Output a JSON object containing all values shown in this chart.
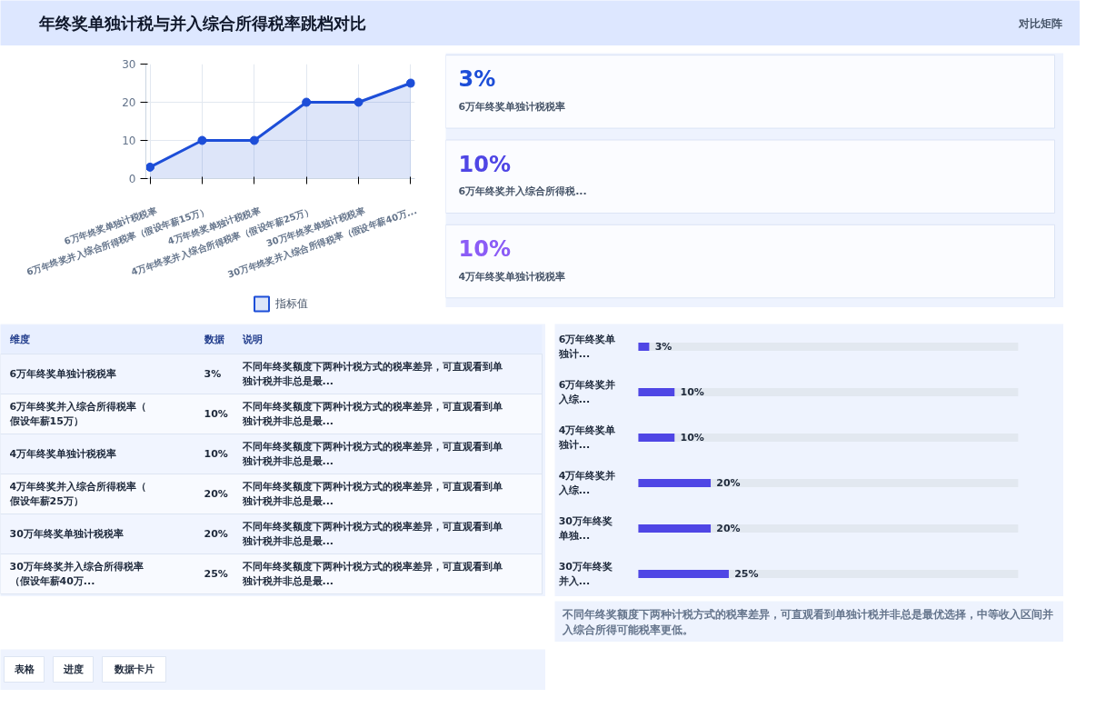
{
  "chart_data": [
    {
      "type": "other",
      "title": "年终奖单独计税与并入综合所得税率跳档对比",
      "subtitle": "对比矩阵"
    },
    {
      "type": "area",
      "categories": [
        "6万年终奖单独计税税率",
        "6万年终奖并入综合所得税率（假设年薪15万）",
        "4万年终奖单独计税税率",
        "4万年终奖并入综合所得税率（假设年薪25万）",
        "30万年终奖单独计税税率",
        "30万年终奖并入综合所得税率（假设年薪40万..."
      ],
      "series": [
        {
          "name": "指标值",
          "color": "#1d4ed8",
          "values": [
            3,
            10,
            10,
            20,
            20,
            25
          ]
        }
      ],
      "ylim": [
        0,
        30
      ],
      "yticks": [
        0,
        10,
        20,
        30
      ],
      "grid": true,
      "legend": "bottom",
      "marker": "circle"
    },
    {
      "type": "other",
      "annotations": [
        "3%",
        "6万年终奖单独计税税率",
        "10%",
        "6万年终奖并入综合所得税...",
        "10%",
        "4万年终奖单独计税税率"
      ]
    },
    {
      "type": "other",
      "annotations": [
        "维度",
        "数据",
        "说明",
        "6万年终奖单独计税税率",
        "3%",
        "不同年终奖额度下两种计税方式的税率差异，可直观看到单独计税并非总是最...",
        "6万年终奖并入综合所得税率（假设年薪15万）",
        "10%",
        "不同年终奖额度下两种计税方式的税率差异，可直观看到单独计税并非总是最...",
        "4万年终奖单独计税税率",
        "10%",
        "不同年终奖额度下两种计税方式的税率差异，可直观看到单独计税并非总是最...",
        "4万年终奖并入综合所得税率（假设年薪25万）",
        "20%",
        "不同年终奖额度下两种计税方式的税率差异，可直观看到单独计税并非总是最...",
        "30万年终奖单独计税税率",
        "20%",
        "不同年终奖额度下两种计税方式的税率差异，可直观看到单独计税并非总是最...",
        "30万年终奖并入综合所得税率（假设年薪40万...",
        "25%",
        "不同年终奖额度下两种计税方式的税率差异，可直观看到单独计税并非总是最..."
      ]
    },
    {
      "type": "bar",
      "orientation": "horizontal",
      "categories": [
        "6万年终奖单独计...",
        "6万年终奖并入综...",
        "4万年终奖单独计...",
        "4万年终奖并入综...",
        "30万年终奖单独...",
        "30万年终奖并入..."
      ],
      "values": [
        3,
        10,
        10,
        20,
        20,
        25
      ],
      "value_labels": [
        "3%",
        "10%",
        "10%",
        "20%",
        "20%",
        "25%"
      ],
      "color": "#4f46e5",
      "annotations": [
        "不同年终奖额度下两种计税方式的税率差异，可直观看到单独计税并非总是最优选择，中等收入区间并入综合所得可能税率更低。"
      ]
    },
    {
      "type": "other",
      "annotations": [
        "表格",
        "进度",
        "数据卡片"
      ]
    }
  ]
}
